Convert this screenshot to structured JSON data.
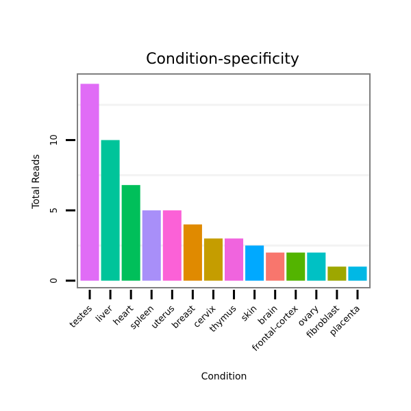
{
  "chart_data": {
    "type": "bar",
    "title": "Condition-specificity",
    "xlabel": "Condition",
    "ylabel": "Total Reads",
    "categories": [
      "testes",
      "liver",
      "heart",
      "spleen",
      "uterus",
      "breast",
      "cervix",
      "thymus",
      "skin",
      "brain",
      "frontal-cortex",
      "ovary",
      "fibroblast",
      "placenta"
    ],
    "values": [
      14,
      10,
      6.8,
      5,
      5,
      4,
      3,
      3,
      2.5,
      2,
      2,
      2,
      1,
      1
    ],
    "colors": [
      "#E06CF6",
      "#00C49A",
      "#00BF5A",
      "#A88FF9",
      "#FB61D7",
      "#E08A00",
      "#C59D00",
      "#F064DE",
      "#00A9FF",
      "#F8766D",
      "#53B400",
      "#00C1C4",
      "#9DA700",
      "#00B8E5"
    ],
    "ylim": [
      -0.5,
      14.7
    ],
    "yticks": [
      0,
      5,
      10
    ],
    "grid": true,
    "legend": "none"
  }
}
